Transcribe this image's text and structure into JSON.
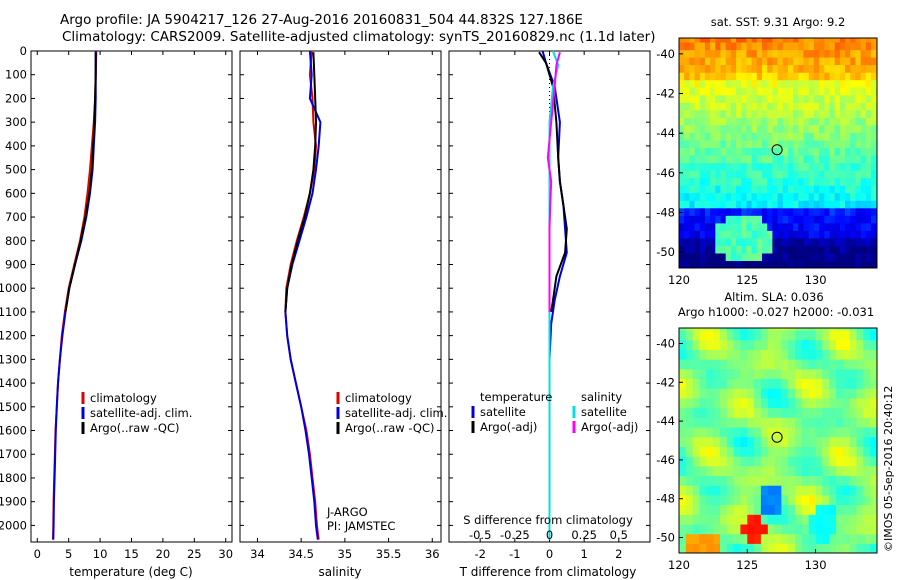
{
  "header": {
    "title_line1": "Argo profile: JA 5904217_126 27-Aug-2016 20160831_504 44.832S 127.186E",
    "title_line2": "Climatology: CARS2009. Satellite-adjusted climatology: synTS_20160829.nc (1.1d later)"
  },
  "colors": {
    "climatology": "#e00000",
    "satellite": "#0000dd",
    "argo": "#000000",
    "salinity_sat": "#00e0e0",
    "salinity_argo": "#ff00ff"
  },
  "chart_data": [
    {
      "type": "line",
      "id": "temperature-profile",
      "xlabel": "temperature (deg C)",
      "ylabel": "",
      "xlim": [
        -1,
        31
      ],
      "ylim": [
        2070,
        0
      ],
      "xticks": [
        0,
        5,
        10,
        15,
        20,
        25,
        30
      ],
      "yticks": [
        0,
        100,
        200,
        300,
        400,
        500,
        600,
        700,
        800,
        900,
        1000,
        1100,
        1200,
        1300,
        1400,
        1500,
        1600,
        1700,
        1800,
        1900,
        2000
      ],
      "legend": [
        "climatology",
        "satellite-adj. clim.",
        "Argo(..raw -QC)"
      ],
      "series": [
        {
          "key": "climatology",
          "x": [
            9.4,
            9.3,
            9.2,
            9.0,
            8.7,
            8.4,
            8.0,
            7.5,
            6.8,
            5.9,
            5.0,
            4.4,
            3.9,
            3.6,
            3.3,
            3.1,
            2.9,
            2.8,
            2.7,
            2.6,
            2.55,
            2.5
          ],
          "y": [
            0,
            100,
            200,
            300,
            400,
            500,
            600,
            700,
            800,
            900,
            1000,
            1100,
            1200,
            1300,
            1400,
            1500,
            1600,
            1700,
            1800,
            1900,
            2000,
            2060
          ]
        },
        {
          "key": "satellite",
          "x": [
            9.3,
            9.3,
            9.3,
            9.2,
            9.0,
            8.8,
            8.4,
            7.8,
            7.0,
            6.0,
            5.1,
            4.5,
            4.0,
            3.6,
            3.3,
            3.1,
            2.95,
            2.85,
            2.75,
            2.65,
            2.6,
            2.55
          ],
          "y": [
            0,
            100,
            200,
            300,
            400,
            500,
            600,
            700,
            800,
            900,
            1000,
            1100,
            1200,
            1300,
            1400,
            1500,
            1600,
            1700,
            1800,
            1900,
            2000,
            2060
          ]
        },
        {
          "key": "argo",
          "x": [
            9.3,
            9.3,
            9.2,
            9.1,
            8.9,
            8.7,
            8.3,
            7.7,
            6.9,
            6.0,
            5.1,
            4.5
          ],
          "y": [
            5,
            100,
            200,
            300,
            400,
            500,
            600,
            700,
            800,
            900,
            1000,
            1100
          ]
        }
      ]
    },
    {
      "type": "line",
      "id": "salinity-profile",
      "xlabel": "salinity",
      "ylabel": "",
      "xlim": [
        33.8,
        36.1
      ],
      "ylim": [
        2070,
        0
      ],
      "xticks": [
        34,
        34.5,
        35,
        35.5,
        36
      ],
      "legend": [
        "climatology",
        "satellite-adj. clim.",
        "Argo(..raw -QC)"
      ],
      "annotation": [
        "J-ARGO",
        "PI: JAMSTEC"
      ],
      "series": [
        {
          "key": "climatology",
          "x": [
            34.62,
            34.6,
            34.63,
            34.64,
            34.67,
            34.65,
            34.6,
            34.53,
            34.45,
            34.38,
            34.33,
            34.32,
            34.34,
            34.38,
            34.44,
            34.5,
            34.56,
            34.6,
            34.63,
            34.66,
            34.68,
            34.7
          ],
          "y": [
            0,
            100,
            200,
            300,
            400,
            500,
            600,
            700,
            800,
            900,
            1000,
            1100,
            1200,
            1300,
            1400,
            1500,
            1600,
            1700,
            1800,
            1900,
            2000,
            2060
          ]
        },
        {
          "key": "satellite",
          "x": [
            34.6,
            34.62,
            34.6,
            34.72,
            34.7,
            34.67,
            34.63,
            34.56,
            34.48,
            34.4,
            34.34,
            34.32,
            34.34,
            34.38,
            34.44,
            34.5,
            34.55,
            34.59,
            34.62,
            34.65,
            34.67,
            34.69
          ],
          "y": [
            0,
            100,
            200,
            300,
            400,
            500,
            600,
            700,
            800,
            900,
            1000,
            1100,
            1200,
            1300,
            1400,
            1500,
            1600,
            1700,
            1800,
            1900,
            2000,
            2060
          ]
        },
        {
          "key": "argo",
          "x": [
            34.64,
            34.65,
            34.66,
            34.67,
            34.66,
            34.64,
            34.6,
            34.54,
            34.46,
            34.39,
            34.34,
            34.32
          ],
          "y": [
            5,
            100,
            200,
            300,
            400,
            500,
            600,
            700,
            800,
            900,
            1000,
            1100
          ]
        }
      ]
    },
    {
      "type": "line",
      "id": "difference-profile",
      "xlabel": "T difference from climatology",
      "top_label": "S difference from climatology",
      "xlim": [
        -2.9,
        2.9
      ],
      "ylim": [
        2070,
        0
      ],
      "xticks": [
        -2,
        -1,
        0,
        1,
        2
      ],
      "top_ticks_labels": [
        "-0.5",
        "-0.25",
        "0",
        "0.25",
        "0.5"
      ],
      "top_ticks_pos": [
        -2,
        -1,
        0,
        1,
        2
      ],
      "legend_temperature_title": "temperature",
      "legend_salinity_title": "salinity",
      "legend_temperature": [
        "satellite",
        "Argo(-adj)"
      ],
      "legend_salinity": [
        "satellite",
        "Argo(-adj)"
      ],
      "series": [
        {
          "key": "satellite",
          "x": [
            -0.2,
            -0.1,
            0.15,
            0.3,
            0.25,
            0.3,
            0.4,
            0.45,
            0.5,
            0.3,
            0.15,
            0.05,
            0.0,
            0.0,
            0.0,
            0.0,
            0.0,
            0.0,
            0.0
          ],
          "y": [
            0,
            50,
            150,
            300,
            450,
            550,
            650,
            750,
            850,
            950,
            1050,
            1150,
            1300,
            1450,
            1600,
            1750,
            1900,
            2000,
            2060
          ]
        },
        {
          "key": "argo",
          "x": [
            -0.3,
            -0.1,
            0.1,
            0.2,
            0.25,
            0.3,
            0.4,
            0.5,
            0.45,
            0.2,
            0.1,
            0.05
          ],
          "y": [
            5,
            50,
            150,
            300,
            450,
            550,
            650,
            750,
            850,
            950,
            1050,
            1100
          ]
        },
        {
          "key": "salinity_sat",
          "x": [
            0.1,
            0.25,
            0.1,
            0.0,
            0.0,
            0.0,
            0.0,
            0.0,
            0.0,
            0.0,
            0.0,
            0.0,
            0.0,
            0.0,
            0.0,
            0.0,
            0.0,
            0.0
          ],
          "y": [
            0,
            60,
            150,
            300,
            450,
            600,
            750,
            900,
            1000,
            1100,
            1250,
            1400,
            1550,
            1700,
            1850,
            1950,
            2000,
            2060
          ]
        },
        {
          "key": "salinity_argo",
          "x": [
            0.3,
            0.2,
            0.15,
            0.05,
            -0.05,
            0.05,
            0.02,
            0.0,
            0.0,
            0.0,
            0.0,
            0.0
          ],
          "y": [
            5,
            60,
            150,
            300,
            450,
            550,
            650,
            750,
            850,
            950,
            1050,
            1100
          ]
        }
      ]
    },
    {
      "type": "heatmap",
      "id": "sst-map",
      "title": "sat. SST: 9.31 Argo: 9.2",
      "xlim": [
        120,
        134.5
      ],
      "ylim": [
        -50.8,
        -39.2
      ],
      "xticks": [
        120,
        125,
        130
      ],
      "yticks": [
        -40,
        -42,
        -44,
        -46,
        -48,
        -50
      ],
      "marker": [
        127.186,
        -44.832
      ]
    },
    {
      "type": "heatmap",
      "id": "sla-map",
      "title_line1": "Altim. SLA: 0.036",
      "title_line2": "Argo h1000: -0.027 h2000: -0.031",
      "xlim": [
        120,
        134.5
      ],
      "ylim": [
        -50.8,
        -39.2
      ],
      "xticks": [
        120,
        125,
        130
      ],
      "yticks": [
        -40,
        -42,
        -44,
        -46,
        -48,
        -50
      ],
      "marker": [
        127.186,
        -44.832
      ]
    }
  ],
  "credit": "©IMOS 05-Sep-2016 20:40:12"
}
